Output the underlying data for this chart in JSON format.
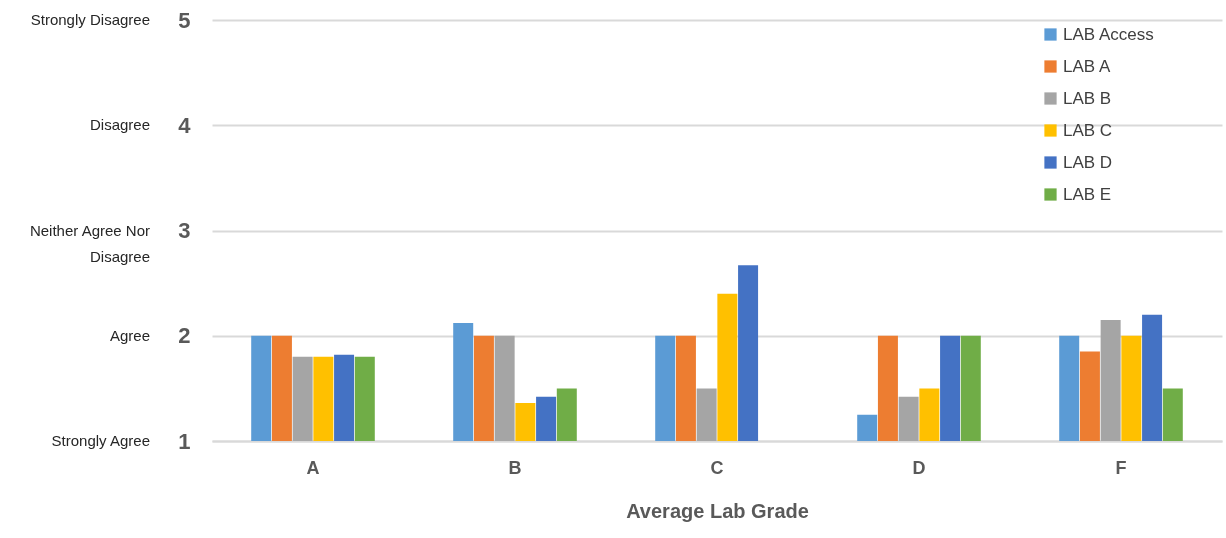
{
  "chart_data": {
    "type": "bar",
    "xlabel": "Average Lab Grade",
    "categories": [
      "A",
      "B",
      "C",
      "D",
      "F"
    ],
    "series": [
      {
        "name": "LAB Access",
        "color": "#5b9bd5",
        "values": [
          2,
          2.12,
          2,
          1.25,
          2
        ]
      },
      {
        "name": "LAB A",
        "color": "#ed7d31",
        "values": [
          2,
          2,
          2,
          2,
          1.85
        ]
      },
      {
        "name": "LAB B",
        "color": "#a5a5a5",
        "values": [
          1.8,
          2,
          1.5,
          1.42,
          2.15
        ]
      },
      {
        "name": "LAB C",
        "color": "#ffc000",
        "values": [
          1.8,
          1.36,
          2.4,
          1.5,
          2
        ]
      },
      {
        "name": "LAB D",
        "color": "#4472c4",
        "values": [
          1.82,
          1.42,
          2.67,
          2,
          2.2
        ]
      },
      {
        "name": "LAB E",
        "color": "#70ad47",
        "values": [
          1.8,
          1.5,
          null,
          2,
          1.5
        ]
      }
    ],
    "ylim": [
      1,
      5
    ],
    "yticks": [
      1,
      2,
      3,
      4,
      5
    ],
    "grid": "y",
    "legend": "top right",
    "annotations": [
      "Strongly Agree",
      "Agree",
      "Neither Agree Nor Disagree",
      "Disagree",
      "Strongly Disagree"
    ]
  }
}
